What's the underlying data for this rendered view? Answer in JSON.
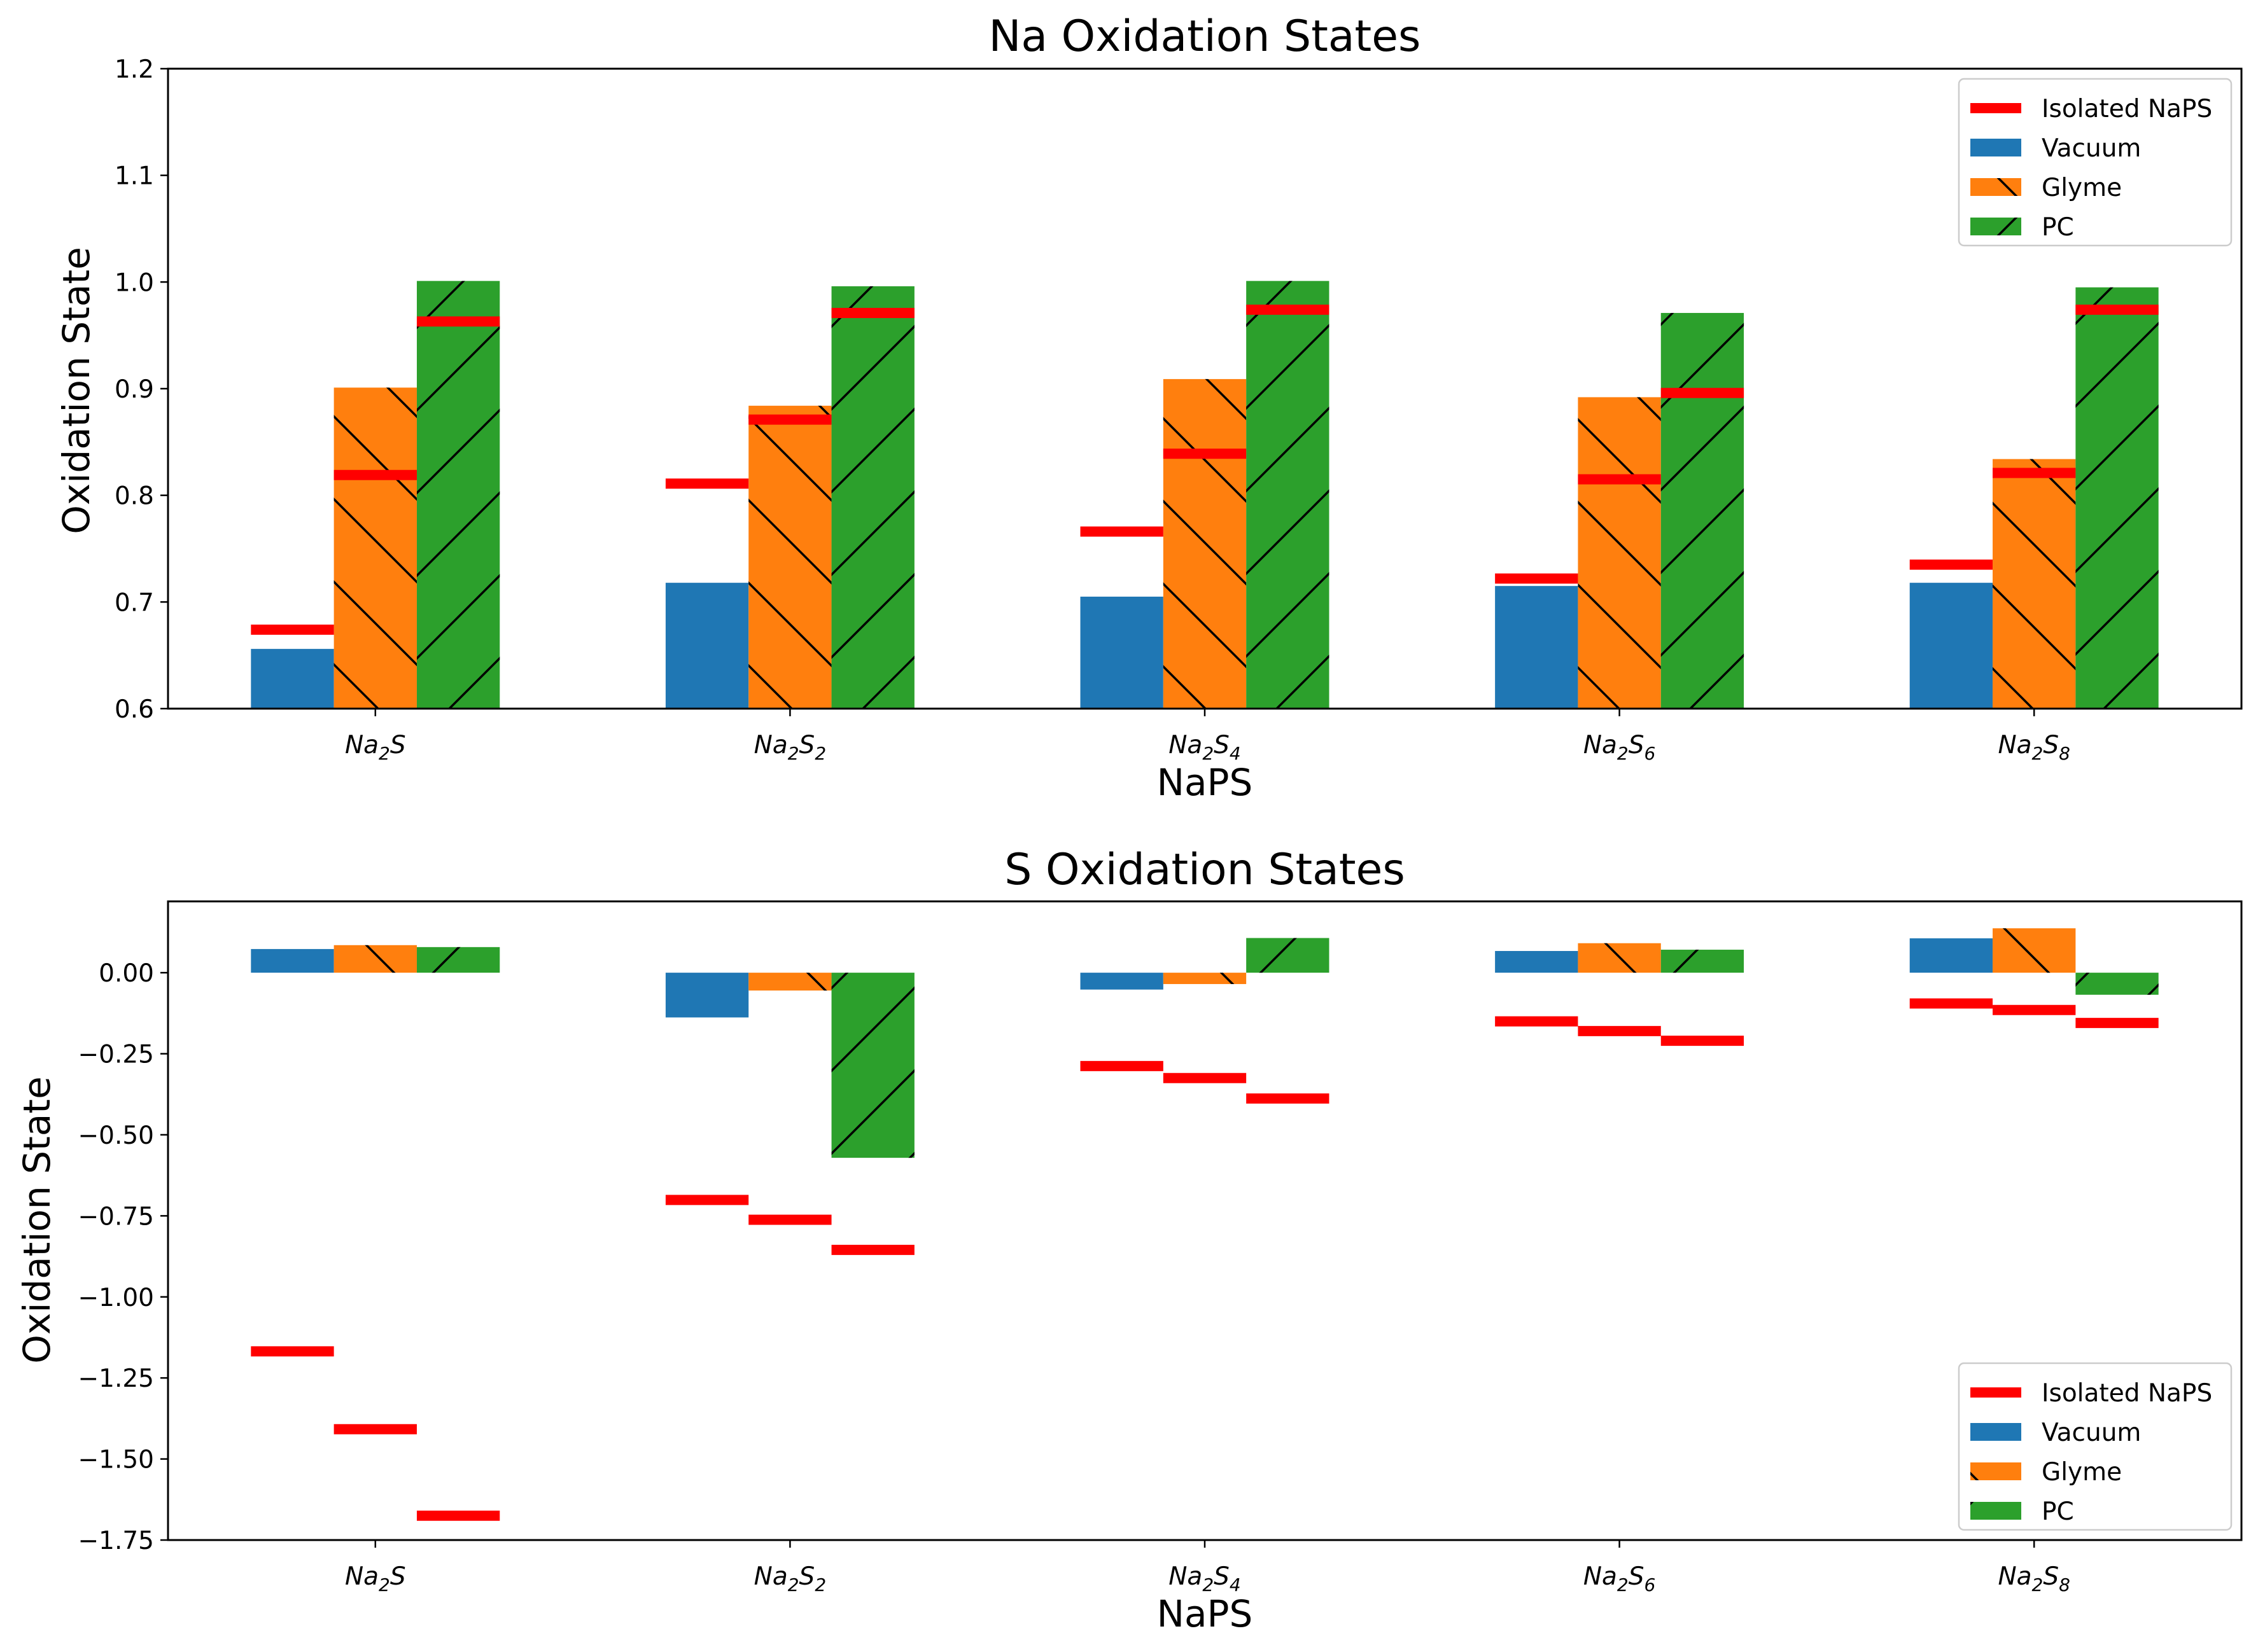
{
  "chart_data": [
    {
      "type": "bar",
      "title": "Na Oxidation States",
      "xlabel": "NaPS",
      "ylabel": "Oxidation State",
      "ylim": [
        0.6,
        1.2
      ],
      "yticks": [
        "0.6",
        "0.7",
        "0.8",
        "0.9",
        "1.0",
        "1.1",
        "1.2"
      ],
      "yticks_values": [
        0.6,
        0.7,
        0.8,
        0.9,
        1.0,
        1.1,
        1.2
      ],
      "categories": [
        {
          "base": "Na",
          "sub1": "2",
          "mid": "S",
          "sub2": ""
        },
        {
          "base": "Na",
          "sub1": "2",
          "mid": "S",
          "sub2": "2"
        },
        {
          "base": "Na",
          "sub1": "2",
          "mid": "S",
          "sub2": "4"
        },
        {
          "base": "Na",
          "sub1": "2",
          "mid": "S",
          "sub2": "6"
        },
        {
          "base": "Na",
          "sub1": "2",
          "mid": "S",
          "sub2": "8"
        }
      ],
      "grid": false,
      "legend_position": "top-right",
      "series": [
        {
          "name": "Vacuum",
          "color": "#1f77b4",
          "hatch": "none",
          "values": [
            0.656,
            0.718,
            0.705,
            0.715,
            0.718
          ]
        },
        {
          "name": "Glyme",
          "color": "#ff7f0e",
          "hatch": "backslash",
          "values": [
            0.901,
            0.884,
            0.909,
            0.892,
            0.834
          ]
        },
        {
          "name": "PC",
          "color": "#2ca02c",
          "hatch": "slash",
          "values": [
            1.001,
            0.996,
            1.001,
            0.971,
            0.995
          ]
        }
      ],
      "isolated": {
        "name": "Isolated NaPS",
        "color": "#ff0000",
        "values": [
          [
            0.674,
            0.819,
            0.963
          ],
          [
            0.811,
            0.871,
            0.971
          ],
          [
            0.766,
            0.839,
            0.974
          ],
          [
            0.722,
            0.815,
            0.896
          ],
          [
            0.735,
            0.821,
            0.974
          ]
        ]
      }
    },
    {
      "type": "bar",
      "title": "S Oxidation States",
      "xlabel": "NaPS",
      "ylabel": "Oxidation State",
      "ylim": [
        -1.75,
        0.22
      ],
      "yticks": [
        "0.00",
        "−0.25",
        "−0.50",
        "−0.75",
        "−1.00",
        "−1.25",
        "−1.50",
        "−1.75"
      ],
      "yticks_values": [
        0,
        -0.25,
        -0.5,
        -0.75,
        -1.0,
        -1.25,
        -1.5,
        -1.75
      ],
      "categories": [
        {
          "base": "Na",
          "sub1": "2",
          "mid": "S",
          "sub2": ""
        },
        {
          "base": "Na",
          "sub1": "2",
          "mid": "S",
          "sub2": "2"
        },
        {
          "base": "Na",
          "sub1": "2",
          "mid": "S",
          "sub2": "4"
        },
        {
          "base": "Na",
          "sub1": "2",
          "mid": "S",
          "sub2": "6"
        },
        {
          "base": "Na",
          "sub1": "2",
          "mid": "S",
          "sub2": "8"
        }
      ],
      "grid": false,
      "legend_position": "bottom-right",
      "series": [
        {
          "name": "Vacuum",
          "color": "#1f77b4",
          "hatch": "none",
          "values": [
            0.073,
            -0.138,
            -0.052,
            0.067,
            0.106
          ]
        },
        {
          "name": "Glyme",
          "color": "#ff7f0e",
          "hatch": "backslash",
          "values": [
            0.085,
            -0.055,
            -0.035,
            0.091,
            0.137
          ]
        },
        {
          "name": "PC",
          "color": "#2ca02c",
          "hatch": "slash",
          "values": [
            0.079,
            -0.571,
            0.107,
            0.071,
            -0.068
          ]
        }
      ],
      "isolated": {
        "name": "Isolated NaPS",
        "color": "#ff0000",
        "values": [
          [
            -1.168,
            -1.408,
            -1.675
          ],
          [
            -0.701,
            -0.762,
            -0.855
          ],
          [
            -0.288,
            -0.325,
            -0.388
          ],
          [
            -0.15,
            -0.18,
            -0.21
          ],
          [
            -0.095,
            -0.115,
            -0.155
          ]
        ]
      }
    }
  ]
}
